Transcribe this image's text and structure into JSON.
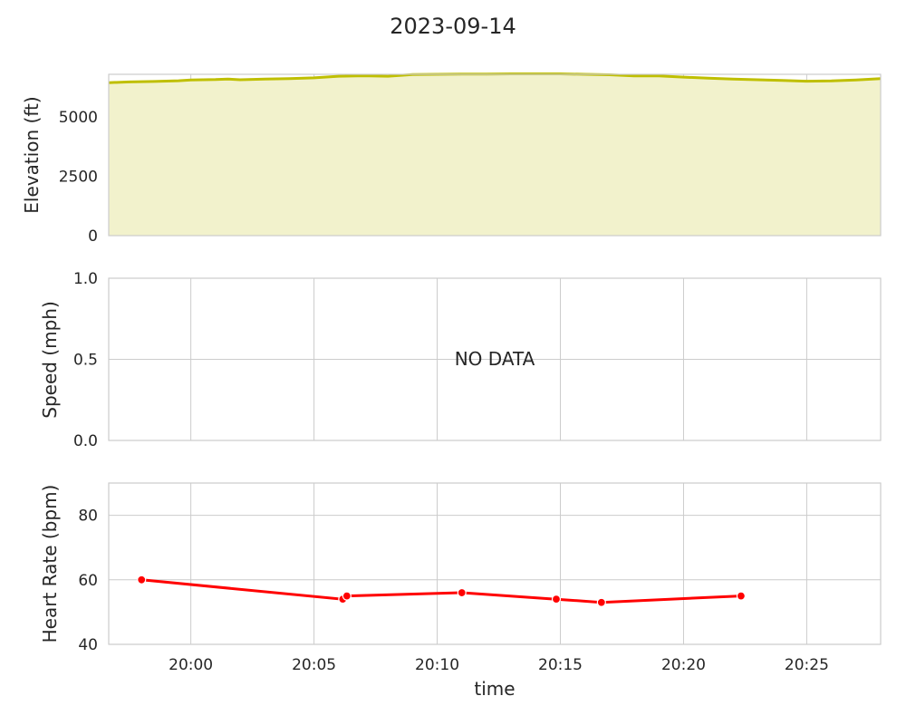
{
  "chart_data": {
    "type": "line",
    "title": "2023-09-14",
    "xlabel": "time",
    "xlim": [
      "19:56:40",
      "20:28:00"
    ],
    "x_ticks": [
      "20:00",
      "20:05",
      "20:10",
      "20:15",
      "20:20",
      "20:25"
    ],
    "grid": true,
    "panels": [
      {
        "id": "elevation",
        "type": "area",
        "ylabel": "Elevation (ft)",
        "ylim": [
          0,
          6800
        ],
        "y_ticks": [
          "0",
          "2500",
          "5000"
        ],
        "color": "#bfbf00",
        "fill_color": "#f2f2cc",
        "series": [
          {
            "x": [
              "19:56:40",
              "19:57:30",
              "19:58:30",
              "19:59:30",
              "20:00:00",
              "20:01:00",
              "20:01:30",
              "20:02:00",
              "20:03:00",
              "20:04:00",
              "20:05:00",
              "20:06:00",
              "20:07:00",
              "20:08:00",
              "20:09:00",
              "20:10:00",
              "20:11:00",
              "20:12:00",
              "20:13:00",
              "20:14:00",
              "20:15:00",
              "20:16:00",
              "20:17:00",
              "20:18:00",
              "20:19:00",
              "20:20:00",
              "20:21:00",
              "20:22:00",
              "20:23:00",
              "20:24:00",
              "20:25:00",
              "20:26:00",
              "20:27:00",
              "20:28:00"
            ],
            "values": [
              6450,
              6480,
              6500,
              6530,
              6560,
              6580,
              6600,
              6570,
              6600,
              6620,
              6650,
              6720,
              6740,
              6720,
              6790,
              6800,
              6810,
              6810,
              6820,
              6820,
              6820,
              6800,
              6780,
              6730,
              6730,
              6680,
              6640,
              6600,
              6570,
              6540,
              6510,
              6520,
              6560,
              6620
            ]
          }
        ]
      },
      {
        "id": "speed",
        "type": "line",
        "ylabel": "Speed (mph)",
        "ylim": [
          0,
          1
        ],
        "y_ticks": [
          "0.0",
          "0.5",
          "1.0"
        ],
        "annotation": "NO DATA",
        "series": []
      },
      {
        "id": "heart_rate",
        "type": "line",
        "ylabel": "Heart Rate (bpm)",
        "ylim": [
          40,
          90
        ],
        "y_ticks": [
          "40",
          "60",
          "80"
        ],
        "color": "#ff0000",
        "markers": true,
        "series": [
          {
            "x": [
              "19:58:00",
              "20:06:10",
              "20:06:20",
              "20:11:00",
              "20:14:50",
              "20:16:40",
              "20:22:20"
            ],
            "values": [
              60,
              54,
              55,
              56,
              54,
              53,
              55
            ]
          }
        ]
      }
    ]
  }
}
